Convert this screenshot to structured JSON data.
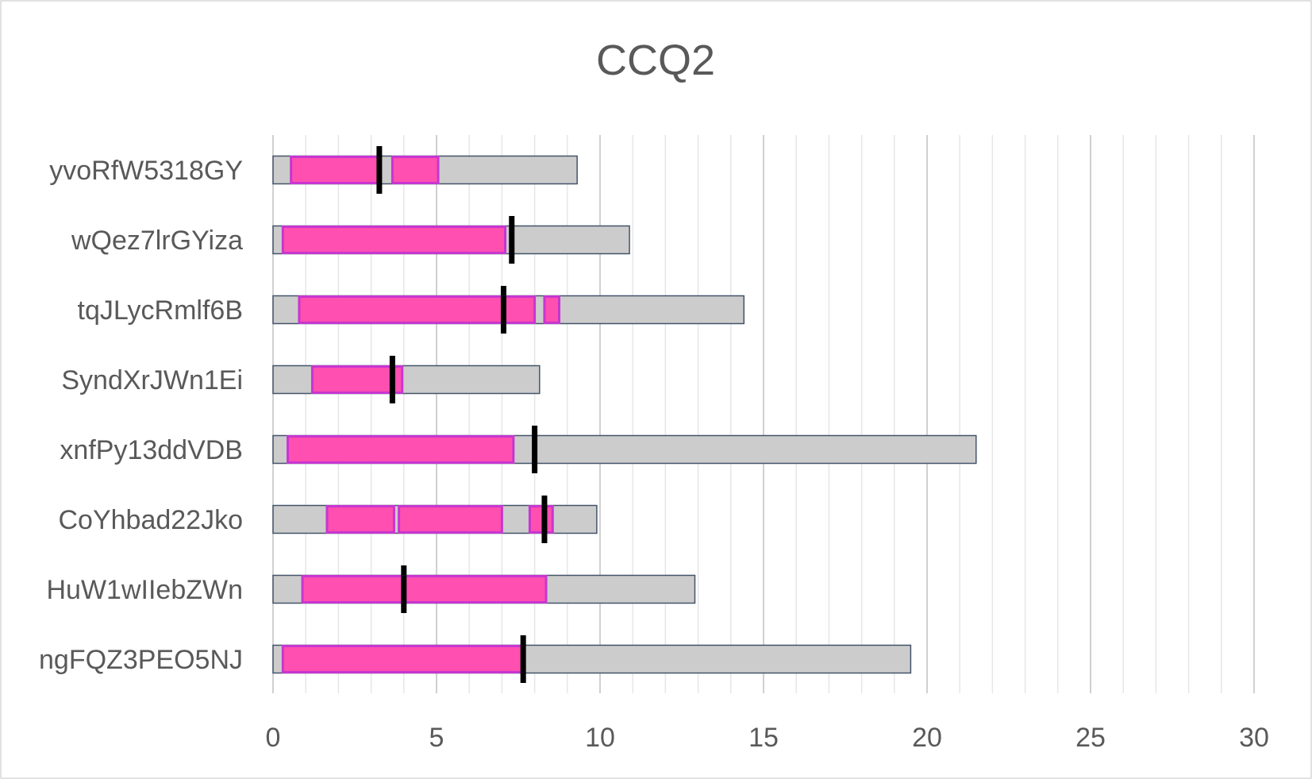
{
  "chart_data": {
    "type": "bar",
    "title": "CCQ2",
    "xlabel": "",
    "ylabel": "",
    "xlim": [
      0,
      30
    ],
    "x_ticks": [
      0,
      5,
      10,
      15,
      20,
      25,
      30
    ],
    "grid": "vertical, every 1 unit",
    "legend": "none",
    "colors": {
      "track_fill": "#cccccc",
      "track_stroke": "#44546a",
      "segment_fill": "#ff4fb0",
      "segment_stroke": "#c736d0",
      "marker": "#000000",
      "grid": "#d9d9d9",
      "text": "#595959"
    },
    "categories": [
      "yvoRfW5318GY",
      "wQez7lrGYiza",
      "tqJLycRmlf6B",
      "SyndXrJWn1Ei",
      "xnfPy13ddVDB",
      "CoYhbad22Jko",
      "HuW1wIIebZWn",
      "ngFQZ3PEO5NJ"
    ],
    "rows": [
      {
        "label": "yvoRfW5318GY",
        "total": 9.3,
        "segments": [
          [
            0.55,
            3.25
          ],
          [
            3.65,
            5.05
          ]
        ],
        "marker": 3.25
      },
      {
        "label": "wQez7lrGYiza",
        "total": 10.9,
        "segments": [
          [
            0.3,
            7.1
          ]
        ],
        "marker": 7.3
      },
      {
        "label": "tqJLycRmlf6B",
        "total": 14.4,
        "segments": [
          [
            0.8,
            8.0
          ],
          [
            8.3,
            8.75
          ]
        ],
        "marker": 7.05
      },
      {
        "label": "SyndXrJWn1Ei",
        "total": 8.15,
        "segments": [
          [
            1.2,
            3.95
          ]
        ],
        "marker": 3.65
      },
      {
        "label": "xnfPy13ddVDB",
        "total": 21.5,
        "segments": [
          [
            0.45,
            7.35
          ]
        ],
        "marker": 8.0
      },
      {
        "label": "CoYhbad22Jko",
        "total": 9.9,
        "segments": [
          [
            1.65,
            3.7
          ],
          [
            3.85,
            7.0
          ],
          [
            7.85,
            8.55
          ]
        ],
        "marker": 8.3
      },
      {
        "label": "HuW1wIIebZWn",
        "total": 12.9,
        "segments": [
          [
            0.9,
            8.35
          ]
        ],
        "marker": 4.0
      },
      {
        "label": "ngFQZ3PEO5NJ",
        "total": 19.5,
        "segments": [
          [
            0.3,
            7.65
          ]
        ],
        "marker": 7.65
      }
    ]
  }
}
